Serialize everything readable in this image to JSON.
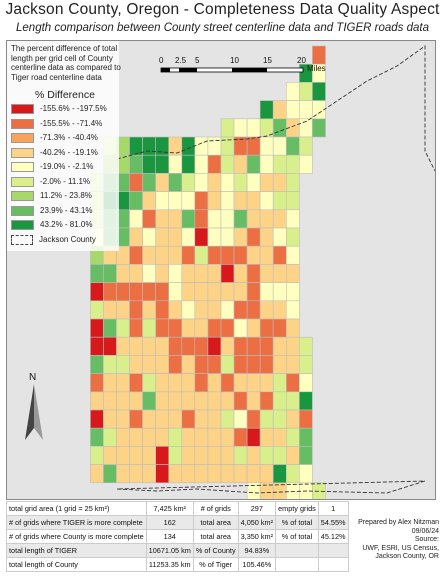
{
  "title": "Jackson County, Oregon - Completeness Data Quality Aspect",
  "subtitle": "Length comparison between County street centerline data and TIGER roads data",
  "legend": {
    "description": "The percent difference of total length per grid cell of County centerline data as compared to Tiger road centerline data",
    "title": "% Difference",
    "classes": [
      {
        "label": "-155.6% - -197.5%",
        "color": "#d7191c"
      },
      {
        "label": "-155.5% - -71.4%",
        "color": "#ec6e43"
      },
      {
        "label": "-71.3% - -40.4%",
        "color": "#f7a35b"
      },
      {
        "label": "-40.2% - -19.1%",
        "color": "#fdd387"
      },
      {
        "label": "-19.0% - -2.1%",
        "color": "#ffffbf"
      },
      {
        "label": "-2.0% - 11.1%",
        "color": "#d9ef8b"
      },
      {
        "label": "11.2% - 23.8%",
        "color": "#a6d96a"
      },
      {
        "label": "23.9% - 43.1%",
        "color": "#66bd63"
      },
      {
        "label": "43.2% - 81.0%",
        "color": "#1a9641"
      }
    ],
    "boundary_label": "Jackson County"
  },
  "north_arrow": {
    "label": "N"
  },
  "scale_bar": {
    "labels": [
      "0",
      "2.5",
      "5",
      "10",
      "15",
      "20"
    ],
    "unit": "Miles"
  },
  "stats": {
    "rows": [
      [
        "total grid area (1 grid = 25 km²)",
        "7,425 km²",
        "# of grids",
        "297",
        "empty grids",
        "1"
      ],
      [
        "# of grids where TIGER is more complete",
        "162",
        "total area",
        "4,050 km²",
        "% of total",
        "54.55%"
      ],
      [
        "# of grids where County is more complete",
        "134",
        "total area",
        "3,350 km²",
        "% of total",
        "45.12%"
      ],
      [
        "total length of TIGER",
        "10671.05 km",
        "% of County",
        "94.83%",
        "",
        ""
      ],
      [
        "total length of County",
        "11253.35 km",
        "% of Tiger",
        "105.46%",
        "",
        ""
      ]
    ]
  },
  "credits": {
    "prepared": "Prepared by Alex Nitzman 09/06/24",
    "source_label": "Source:",
    "source": "UWF, ESRI, US Census, Jackson County, OR"
  },
  "grid_cells": [
    "..............................................rO",
    "............................................TLYr",
    "..........................................YyLGTT",
    "......................................TTyYYOYGYL",
    "................................L.YOYLLYGyyOYLGl",
    "..............LLgYDDDTTTyDDLYTYYLOOYOyYYYyGLLL..",
    "..............gLgYGDDDTDYyDLYYOYLyyOGYYYLLLLYL..",
    "............LLGDGLOYGYyOGyLOYYyOYYLYYYyLyLLY....",
    "............LTTGDGGYyyYOYyYGOOyOYyyOyOYYLLLG....",
    "............LgGGGLYyOyyOyyGLOYYOYYGOyOyYyLYL....",
    "............YGGLGyyOYYyLyyYyRyYYYOyYOOyyYyLY....",
    "............gLyGyyOyyyyOyyOOLOOOOOOOyLyOOOYY....",
    "............GyGyyyyyYyyyYyyYyyyyRRyyOyyyyyyY....",
    "............RLOyOLOyOyOyYOyOyOyOyyyyOYYyYYY.....",
    "............LGyyyYOYyYOyyyYyyyyOYyOyOyyOyLY.....",
    "............RRGyLLOyLGOyOyyyyyOyOyYyyyOyOyyY....",
    "............RRRLyYyyyyyyOyOyOyRyyOOyOyOOyyyyL...",
    "............GyLyLGyyyyyYOLyOOOOOLyOLOyOOyyyyL...",
    "............OyyyyLOOLyyyyOyyOyyyOyyyyRyOLyOLY...",
    "............yOyyyyyOGyyyyyyyyyyyyyOLyOOyLyLLT...",
    "............RLyyyyOYyyyyyyOyyyyyLLYOOyLyLYyyO...",
    "............GyLyyOyyyRyyLyyyyyyyyyOLRyyyyyLyG...",
    "............LRyyyOyyyRRyLyyyyyyyyyLyyOLGLLyGGO..",
    "............yOGyyyyyyyRyyyyyyyyyyyyyyyyLTLLGY...",
    "....................................YyyyyLYTYyL."
  ]
}
